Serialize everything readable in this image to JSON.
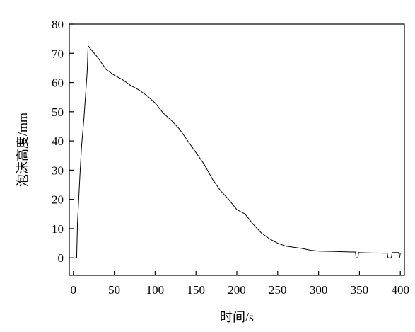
{
  "chart_data": {
    "type": "line",
    "title": "",
    "xlabel": "时间/s",
    "ylabel": "泡沫高度/mm",
    "xlim": [
      -5,
      405
    ],
    "ylim": [
      -6,
      80
    ],
    "x_ticks": [
      0,
      50,
      100,
      150,
      200,
      250,
      300,
      350,
      400
    ],
    "y_ticks": [
      0,
      10,
      20,
      30,
      40,
      50,
      60,
      70,
      80
    ],
    "grid": false,
    "legend": "none",
    "series": [
      {
        "color": "#000000",
        "points": [
          [
            2,
            0
          ],
          [
            4,
            0
          ],
          [
            5,
            12
          ],
          [
            8,
            28
          ],
          [
            10,
            38
          ],
          [
            13,
            48
          ],
          [
            15,
            56
          ],
          [
            17,
            64
          ],
          [
            18,
            72.6
          ],
          [
            20,
            71.8
          ],
          [
            25,
            70.2
          ],
          [
            30,
            68.5
          ],
          [
            35,
            66.5
          ],
          [
            40,
            64.5
          ],
          [
            45,
            63.5
          ],
          [
            50,
            62.5
          ],
          [
            60,
            61
          ],
          [
            70,
            59
          ],
          [
            80,
            57.5
          ],
          [
            90,
            55.5
          ],
          [
            100,
            53
          ],
          [
            110,
            49.5
          ],
          [
            120,
            47
          ],
          [
            130,
            44
          ],
          [
            140,
            40
          ],
          [
            150,
            36
          ],
          [
            160,
            32
          ],
          [
            170,
            27
          ],
          [
            180,
            23
          ],
          [
            190,
            20
          ],
          [
            200,
            16.5
          ],
          [
            210,
            15
          ],
          [
            220,
            11.5
          ],
          [
            230,
            8.5
          ],
          [
            240,
            6.5
          ],
          [
            250,
            5
          ],
          [
            260,
            4
          ],
          [
            270,
            3.6
          ],
          [
            280,
            3.2
          ],
          [
            290,
            2.6
          ],
          [
            300,
            2.3
          ],
          [
            320,
            2.2
          ],
          [
            340,
            2.0
          ],
          [
            345,
            2.0
          ],
          [
            346,
            0
          ],
          [
            348,
            0
          ],
          [
            349,
            1.8
          ],
          [
            360,
            1.7
          ],
          [
            380,
            1.6
          ],
          [
            384,
            1.6
          ],
          [
            385,
            0
          ],
          [
            389,
            0
          ],
          [
            390,
            1.8
          ],
          [
            398,
            1.8
          ],
          [
            399,
            0
          ],
          [
            400,
            1.5
          ]
        ]
      }
    ]
  }
}
